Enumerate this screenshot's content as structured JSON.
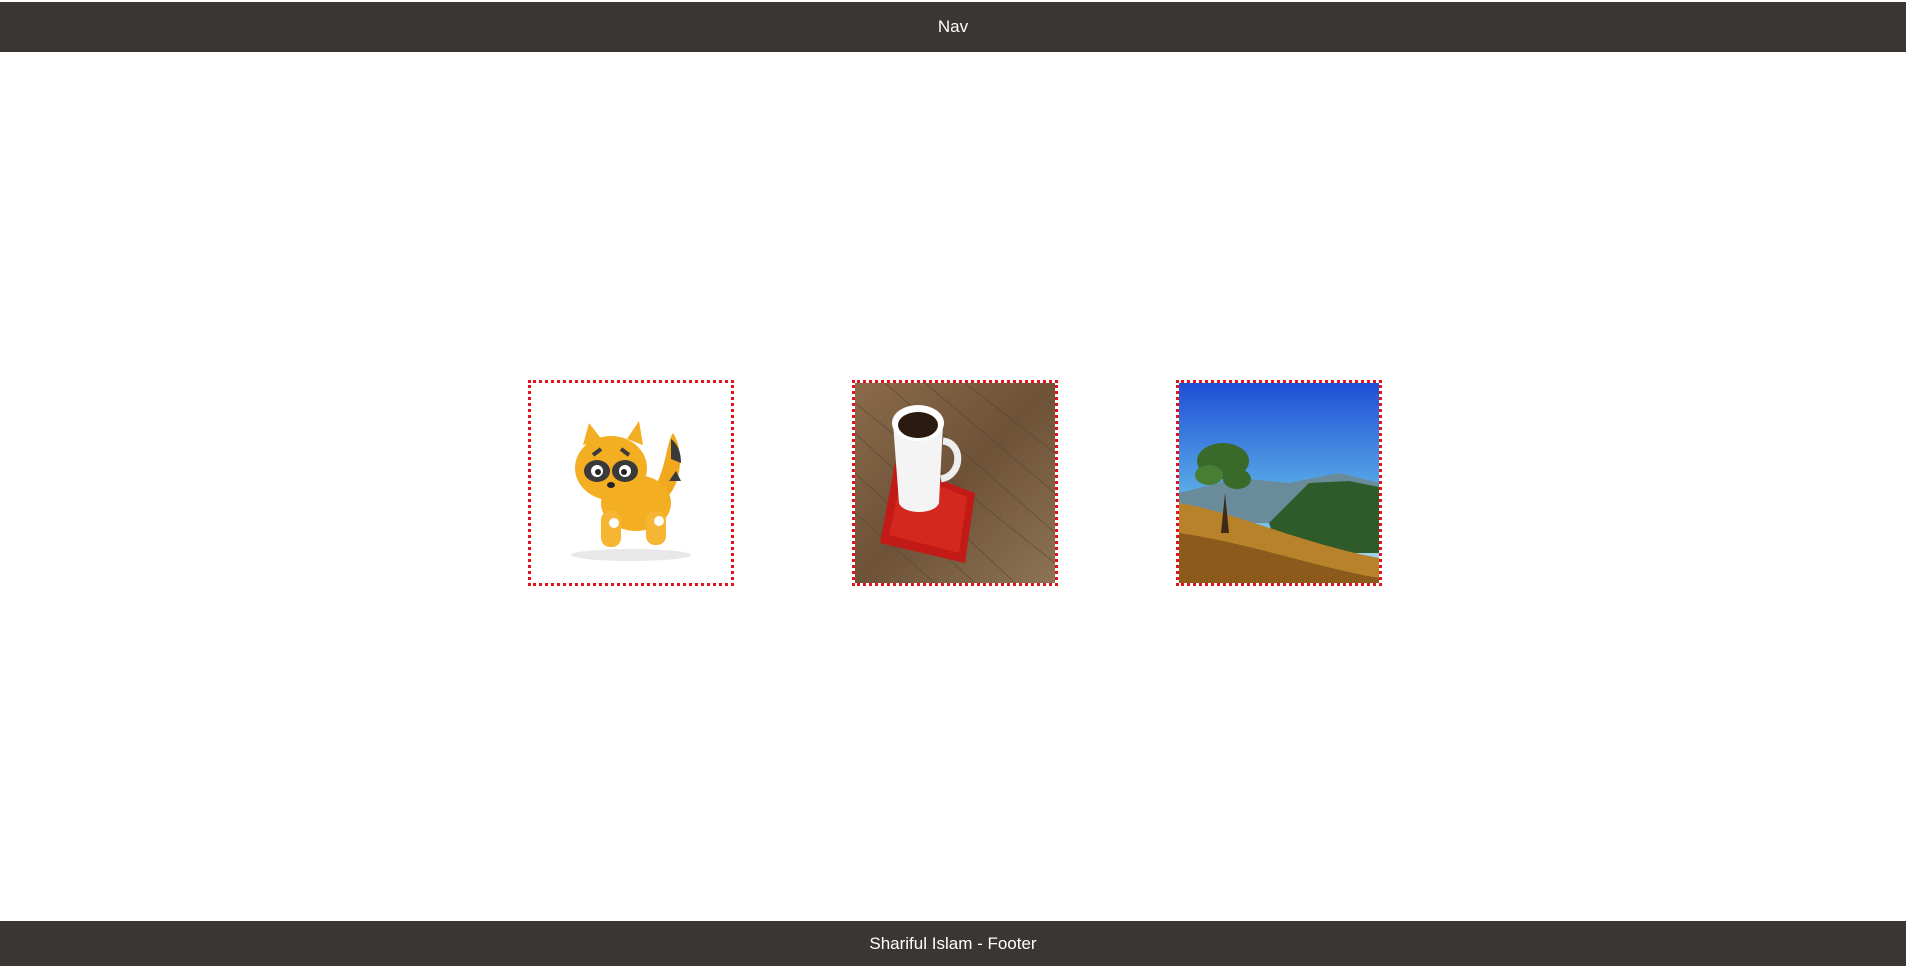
{
  "nav": {
    "label": "Nav"
  },
  "gallery": {
    "images": [
      {
        "icon": "raccoon-toy-image"
      },
      {
        "icon": "coffee-cup-image"
      },
      {
        "icon": "tree-landscape-image"
      }
    ]
  },
  "footer": {
    "label": "Shariful Islam - Footer"
  },
  "colors": {
    "bar": "#3a3634",
    "frame": "#e3131b",
    "text": "#ffffff"
  }
}
